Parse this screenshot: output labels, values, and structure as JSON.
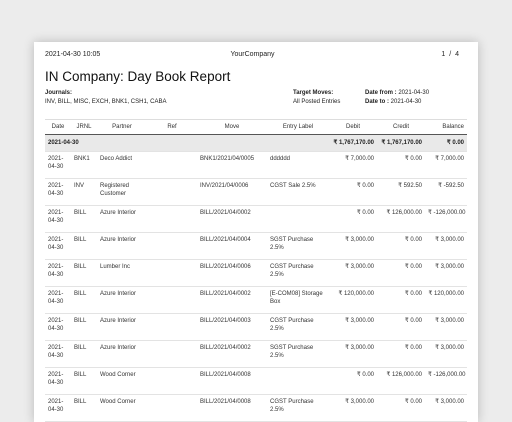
{
  "header": {
    "timestamp": "2021-04-30 10:05",
    "company": "YourCompany",
    "page": "1 / 4"
  },
  "title": "IN Company: Day Book Report",
  "journals": {
    "label": "Journals:",
    "value": "INV, BILL, MISC, EXCH, BNK1, CSH1, CABA"
  },
  "target_moves": {
    "label": "Target Moves:",
    "value": "All Posted Entries"
  },
  "date_from": {
    "label": "Date from :",
    "value": "2021-04-30"
  },
  "date_to": {
    "label": "Date to :",
    "value": "2021-04-30"
  },
  "columns": [
    "Date",
    "JRNL",
    "Partner",
    "Ref",
    "Move",
    "Entry Label",
    "Debit",
    "Credit",
    "Balance"
  ],
  "group": {
    "date": "2021-04-30",
    "debit": "₹ 1,767,170.00",
    "credit": "₹ 1,767,170.00",
    "balance": "₹ 0.00"
  },
  "rows": [
    {
      "date": "2021-04-30",
      "jrnl": "BNK1",
      "partner": "Deco Addict",
      "ref": "",
      "move": "BNK1/2021/04/0005",
      "label": "dddddd",
      "debit": "₹ 7,000.00",
      "credit": "₹ 0.00",
      "balance": "₹ 7,000.00"
    },
    {
      "date": "2021-04-30",
      "jrnl": "INV",
      "partner": "Registered Customer",
      "ref": "",
      "move": "INV/2021/04/0006",
      "label": "CGST Sale 2.5%",
      "debit": "₹ 0.00",
      "credit": "₹ 592.50",
      "balance": "₹ -592.50"
    },
    {
      "date": "2021-04-30",
      "jrnl": "BILL",
      "partner": "Azure Interior",
      "ref": "",
      "move": "BILL/2021/04/0002",
      "label": "",
      "debit": "₹ 0.00",
      "credit": "₹ 126,000.00",
      "balance": "₹ -126,000.00"
    },
    {
      "date": "2021-04-30",
      "jrnl": "BILL",
      "partner": "Azure Interior",
      "ref": "",
      "move": "BILL/2021/04/0004",
      "label": "SGST Purchase 2.5%",
      "debit": "₹ 3,000.00",
      "credit": "₹ 0.00",
      "balance": "₹ 3,000.00"
    },
    {
      "date": "2021-04-30",
      "jrnl": "BILL",
      "partner": "Lumber Inc",
      "ref": "",
      "move": "BILL/2021/04/0006",
      "label": "CGST Purchase 2.5%",
      "debit": "₹ 3,000.00",
      "credit": "₹ 0.00",
      "balance": "₹ 3,000.00"
    },
    {
      "date": "2021-04-30",
      "jrnl": "BILL",
      "partner": "Azure Interior",
      "ref": "",
      "move": "BILL/2021/04/0002",
      "label": "[E-COM08] Storage Box",
      "debit": "₹ 120,000.00",
      "credit": "₹ 0.00",
      "balance": "₹ 120,000.00"
    },
    {
      "date": "2021-04-30",
      "jrnl": "BILL",
      "partner": "Azure Interior",
      "ref": "",
      "move": "BILL/2021/04/0003",
      "label": "CGST Purchase 2.5%",
      "debit": "₹ 3,000.00",
      "credit": "₹ 0.00",
      "balance": "₹ 3,000.00"
    },
    {
      "date": "2021-04-30",
      "jrnl": "BILL",
      "partner": "Azure Interior",
      "ref": "",
      "move": "BILL/2021/04/0002",
      "label": "SGST Purchase 2.5%",
      "debit": "₹ 3,000.00",
      "credit": "₹ 0.00",
      "balance": "₹ 3,000.00"
    },
    {
      "date": "2021-04-30",
      "jrnl": "BILL",
      "partner": "Wood Corner",
      "ref": "",
      "move": "BILL/2021/04/0008",
      "label": "",
      "debit": "₹ 0.00",
      "credit": "₹ 126,000.00",
      "balance": "₹ -126,000.00"
    },
    {
      "date": "2021-04-30",
      "jrnl": "BILL",
      "partner": "Wood Corner",
      "ref": "",
      "move": "BILL/2021/04/0008",
      "label": "CGST Purchase 2.5%",
      "debit": "₹ 3,000.00",
      "credit": "₹ 0.00",
      "balance": "₹ 3,000.00"
    }
  ]
}
